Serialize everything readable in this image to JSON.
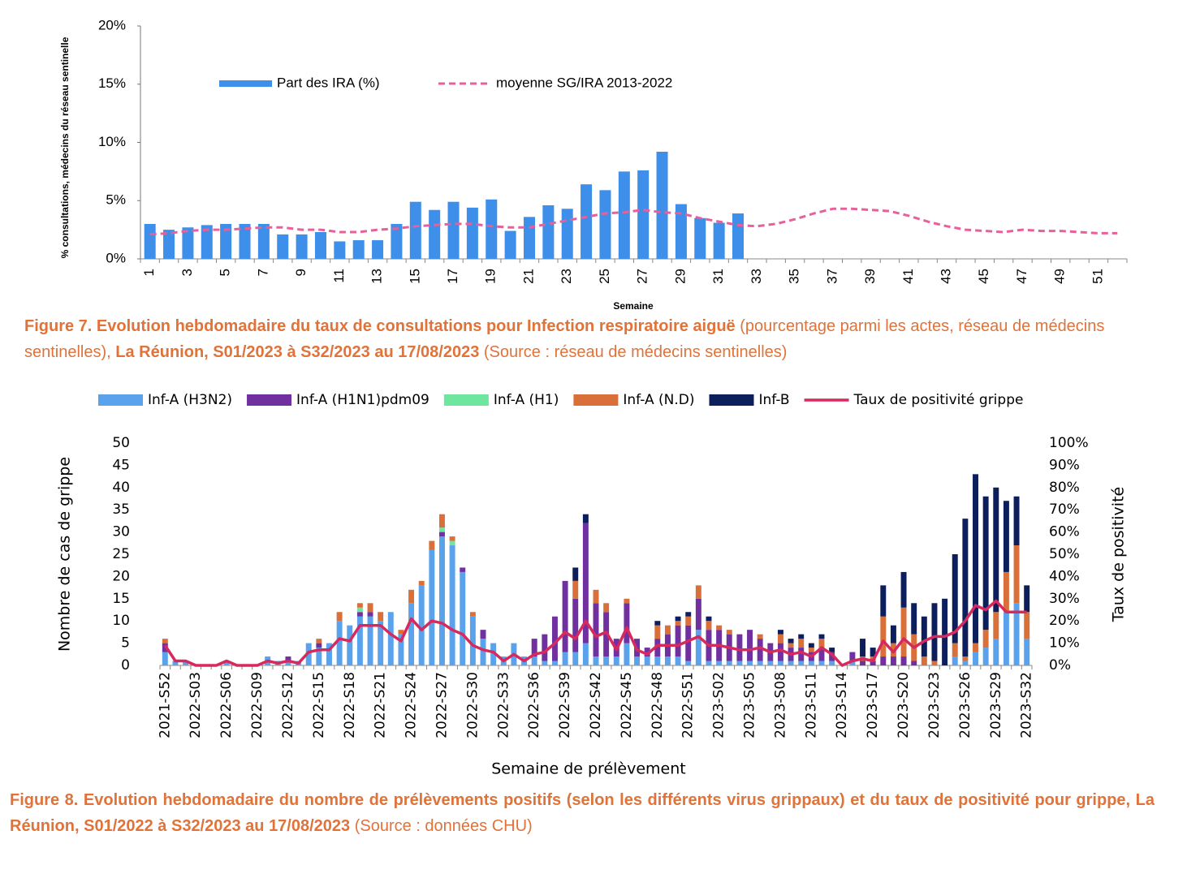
{
  "chart_data": [
    {
      "type": "bar",
      "y_label": "% consultations, médecins du réseau sentinelle",
      "x_label": "Semaine",
      "categories": [
        1,
        null,
        3,
        null,
        5,
        null,
        7,
        null,
        9,
        null,
        11,
        null,
        13,
        null,
        15,
        null,
        17,
        null,
        19,
        null,
        21,
        null,
        23,
        null,
        25,
        null,
        27,
        null,
        29,
        null,
        31,
        null,
        33,
        null,
        35,
        null,
        37,
        null,
        39,
        null,
        41,
        null,
        43,
        null,
        45,
        null,
        47,
        null,
        49,
        null,
        51,
        null
      ],
      "ylim": [
        0,
        20
      ],
      "yticks": [
        {
          "value": 0,
          "label": "0%"
        },
        {
          "value": 5,
          "label": "5%"
        },
        {
          "value": 10,
          "label": "10%"
        },
        {
          "value": 15,
          "label": "15%"
        },
        {
          "value": 20,
          "label": "20%"
        }
      ],
      "grid": false,
      "series": [
        {
          "name": "Part des IRA (%)",
          "type": "bar",
          "color": "#3d8fea",
          "values": [
            3.0,
            2.5,
            2.7,
            2.9,
            3.0,
            3.0,
            3.0,
            2.1,
            2.1,
            2.3,
            1.5,
            1.6,
            1.6,
            3.0,
            4.9,
            4.2,
            4.9,
            4.4,
            5.1,
            2.4,
            3.6,
            4.6,
            4.3,
            6.4,
            5.9,
            7.5,
            7.6,
            9.2,
            4.7,
            3.5,
            3.1,
            3.9,
            null,
            null,
            null,
            null,
            null,
            null,
            null,
            null,
            null,
            null,
            null,
            null,
            null,
            null,
            null,
            null,
            null,
            null,
            null,
            null
          ]
        },
        {
          "name": "moyenne SG/IRA 2013-2022",
          "type": "line",
          "dashed": true,
          "color": "#e8609a",
          "values": [
            2.1,
            2.2,
            2.4,
            2.5,
            2.5,
            2.6,
            2.7,
            2.7,
            2.5,
            2.5,
            2.3,
            2.3,
            2.5,
            2.6,
            2.8,
            2.9,
            3.0,
            3.0,
            2.8,
            2.7,
            2.7,
            3.0,
            3.3,
            3.6,
            3.9,
            4.0,
            4.2,
            4.0,
            3.9,
            3.5,
            3.2,
            2.9,
            2.8,
            3.0,
            3.4,
            3.9,
            4.3,
            4.3,
            4.2,
            4.1,
            3.7,
            3.2,
            2.8,
            2.5,
            2.4,
            2.3,
            2.5,
            2.4,
            2.4,
            2.3,
            2.2,
            2.2
          ]
        }
      ],
      "caption": [
        {
          "text": "Figure 7. Evolution hebdomadaire du taux de consultations pour Infection respiratoire aiguë",
          "bold": true
        },
        {
          "text": " (pourcentage parmi les actes, réseau de médecins sentinelles), ",
          "bold": false
        },
        {
          "text": "La Réunion, S01/2023 à S32/2023 au 17/08/2023",
          "bold": true
        },
        {
          "text": " (Source : réseau de médecins sentinelles)",
          "bold": false
        }
      ]
    },
    {
      "type": "stacked_bar",
      "y_label": "Nombre de cas de grippe",
      "y2_label": "Taux de positivité",
      "x_label": "Semaine de prélèvement",
      "categories": [
        "2021-S52",
        null,
        null,
        "2022-S03",
        null,
        null,
        "2022-S06",
        null,
        null,
        "2022-S09",
        null,
        null,
        "2022-S12",
        null,
        null,
        "2022-S15",
        null,
        null,
        "2022-S18",
        null,
        null,
        "2022-S21",
        null,
        null,
        "2022-S24",
        null,
        null,
        "2022-S27",
        null,
        null,
        "2022-S30",
        null,
        null,
        "2022-S33",
        null,
        null,
        "2022-S36",
        null,
        null,
        "2022-S39",
        null,
        null,
        "2022-S42",
        null,
        null,
        "2022-S45",
        null,
        null,
        "2022-S48",
        null,
        null,
        "2022-S51",
        null,
        null,
        "2023-S02",
        null,
        null,
        "2023-S05",
        null,
        null,
        "2023-S08",
        null,
        null,
        "2023-S11",
        null,
        null,
        "2023-S14",
        null,
        null,
        "2023-S17",
        null,
        null,
        "2023-S20",
        null,
        null,
        "2023-S23",
        null,
        null,
        "2023-S26",
        null,
        null,
        "2023-S29",
        null,
        null,
        "2023-S32"
      ],
      "ylim": [
        0,
        50
      ],
      "yticks": [
        0,
        5,
        10,
        15,
        20,
        25,
        30,
        35,
        40,
        45,
        50
      ],
      "y2lim": [
        0,
        100
      ],
      "y2ticks": [
        {
          "value": 0,
          "label": "0%"
        },
        {
          "value": 10,
          "label": "10%"
        },
        {
          "value": 20,
          "label": "20%"
        },
        {
          "value": 30,
          "label": "30%"
        },
        {
          "value": 40,
          "label": "40%"
        },
        {
          "value": 50,
          "label": "50%"
        },
        {
          "value": 60,
          "label": "60%"
        },
        {
          "value": 70,
          "label": "70%"
        },
        {
          "value": 80,
          "label": "80%"
        },
        {
          "value": 90,
          "label": "90%"
        },
        {
          "value": 100,
          "label": "100%"
        }
      ],
      "grid": false,
      "series": [
        {
          "name": "Inf-A (H3N2)",
          "type": "bar",
          "color": "#5aa3ec",
          "values": [
            3,
            1,
            1,
            0,
            0,
            0,
            1,
            0,
            0,
            0,
            2,
            1,
            1,
            1,
            5,
            4,
            5,
            10,
            9,
            11,
            11,
            10,
            12,
            7,
            14,
            18,
            26,
            29,
            27,
            21,
            11,
            6,
            5,
            2,
            5,
            2,
            2,
            1,
            1,
            3,
            3,
            5,
            2,
            2,
            2,
            5,
            2,
            2,
            2,
            2,
            2,
            1,
            8,
            1,
            1,
            1,
            1,
            1,
            1,
            1,
            1,
            1,
            1,
            1,
            1,
            1,
            0,
            1,
            0,
            0,
            0,
            0,
            0,
            0,
            0,
            0,
            0,
            2,
            1,
            3,
            4,
            6,
            12,
            14,
            6
          ]
        },
        {
          "name": "Inf-A  (H1N1)pdm09",
          "type": "bar",
          "color": "#7030a0",
          "values": [
            2,
            0,
            0,
            0,
            0,
            0,
            0,
            0,
            0,
            0,
            0,
            0,
            1,
            0,
            0,
            1,
            0,
            0,
            0,
            1,
            1,
            0,
            0,
            0,
            0,
            0,
            0,
            1,
            0,
            1,
            0,
            2,
            0,
            0,
            0,
            0,
            4,
            6,
            10,
            16,
            12,
            27,
            12,
            10,
            4,
            9,
            4,
            2,
            4,
            5,
            7,
            8,
            7,
            7,
            7,
            6,
            6,
            7,
            5,
            4,
            4,
            3,
            3,
            2,
            3,
            2,
            0,
            2,
            1,
            1,
            2,
            2,
            2,
            1,
            0,
            0,
            0,
            0,
            0,
            0,
            0,
            0,
            0,
            0,
            0
          ]
        },
        {
          "name": "Inf-A (H1)",
          "type": "bar",
          "color": "#6ee6a0",
          "values": [
            0,
            0,
            0,
            0,
            0,
            0,
            0,
            0,
            0,
            0,
            0,
            0,
            0,
            0,
            0,
            0,
            0,
            0,
            0,
            1,
            0,
            0,
            0,
            0,
            0,
            0,
            0,
            1,
            1,
            0,
            0,
            0,
            0,
            0,
            0,
            0,
            0,
            0,
            0,
            0,
            0,
            0,
            0,
            0,
            0,
            0,
            0,
            0,
            0,
            0,
            0,
            0,
            0,
            0,
            0,
            0,
            0,
            0,
            0,
            0,
            0,
            0,
            0,
            0,
            0,
            0,
            0,
            0,
            0,
            0,
            0,
            0,
            0,
            0,
            0,
            0,
            0,
            0,
            0,
            0,
            0,
            0,
            0,
            0,
            0
          ]
        },
        {
          "name": "Inf-A (N.D)",
          "type": "bar",
          "color": "#d9703a",
          "values": [
            1,
            0,
            0,
            0,
            0,
            0,
            0,
            0,
            0,
            0,
            0,
            0,
            0,
            0,
            0,
            1,
            0,
            2,
            0,
            1,
            2,
            2,
            0,
            1,
            3,
            1,
            2,
            3,
            1,
            0,
            1,
            0,
            0,
            0,
            0,
            0,
            0,
            0,
            0,
            0,
            4,
            0,
            3,
            2,
            0,
            1,
            0,
            0,
            3,
            2,
            1,
            2,
            3,
            2,
            1,
            1,
            0,
            0,
            1,
            0,
            2,
            1,
            2,
            1,
            2,
            0,
            0,
            0,
            1,
            1,
            9,
            3,
            11,
            6,
            2,
            1,
            0,
            3,
            1,
            2,
            4,
            6,
            9,
            13,
            6
          ]
        },
        {
          "name": "Inf-B",
          "type": "bar",
          "color": "#0c1f5c",
          "values": [
            0,
            0,
            0,
            0,
            0,
            0,
            0,
            0,
            0,
            0,
            0,
            0,
            0,
            0,
            0,
            0,
            0,
            0,
            0,
            0,
            0,
            0,
            0,
            0,
            0,
            0,
            0,
            0,
            0,
            0,
            0,
            0,
            0,
            0,
            0,
            0,
            0,
            0,
            0,
            0,
            3,
            2,
            0,
            0,
            0,
            0,
            0,
            0,
            1,
            0,
            1,
            1,
            0,
            1,
            0,
            0,
            0,
            0,
            0,
            0,
            1,
            1,
            1,
            1,
            1,
            1,
            0,
            0,
            4,
            2,
            7,
            4,
            8,
            7,
            9,
            13,
            15,
            20,
            31,
            38,
            30,
            28,
            16,
            11,
            6
          ]
        },
        {
          "name": "Taux de positivité grippe",
          "type": "line",
          "axis": "y2",
          "color": "#d6295d",
          "values": [
            9,
            2,
            2,
            0,
            0,
            0,
            2,
            0,
            0,
            0,
            2,
            1,
            2,
            1,
            6,
            7,
            7,
            12,
            11,
            18,
            18,
            18,
            14,
            11,
            21,
            16,
            20,
            19,
            16,
            14,
            9,
            7,
            6,
            2,
            5,
            2,
            5,
            6,
            10,
            15,
            12,
            20,
            13,
            15,
            7,
            17,
            7,
            5,
            9,
            9,
            9,
            11,
            13,
            9,
            9,
            8,
            7,
            7,
            8,
            6,
            7,
            5,
            6,
            4,
            8,
            5,
            0,
            2,
            3,
            2,
            11,
            6,
            12,
            8,
            11,
            13,
            13,
            15,
            20,
            27,
            25,
            29,
            24,
            24,
            24
          ]
        }
      ],
      "caption": [
        {
          "text": "Figure 8. Evolution hebdomadaire du nombre de prélèvements positifs (selon les différents virus grippaux) et du taux de positivité pour grippe, La Réunion, S01/2022 à S32/2023 au 17/08/2023",
          "bold": true
        },
        {
          "text": " (Source : données CHU)",
          "bold": false
        }
      ]
    }
  ]
}
